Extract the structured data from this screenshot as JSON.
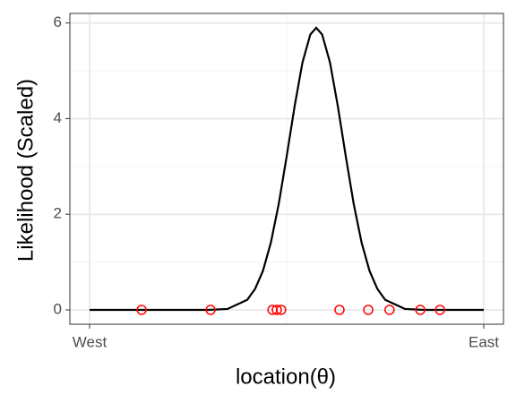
{
  "chart_data": {
    "type": "line",
    "x_label": "location(θ)",
    "y_label": "Likelihood (Scaled)",
    "xlim": [
      -0.05,
      1.05
    ],
    "ylim": [
      -0.3,
      6.2
    ],
    "xticks": [
      {
        "value": 0,
        "label": "West"
      },
      {
        "value": 1,
        "label": "East"
      }
    ],
    "yticks": [
      0,
      2,
      4,
      6
    ],
    "x_minor_ticks": [
      0.5
    ],
    "y_minor_ticks": [
      1,
      3,
      5
    ],
    "grid": true,
    "series": [
      {
        "type": "line",
        "color": "#000000",
        "x": [
          0,
          0.1,
          0.2,
          0.3,
          0.35,
          0.4,
          0.42,
          0.44,
          0.46,
          0.48,
          0.5,
          0.52,
          0.54,
          0.56,
          0.575,
          0.59,
          0.61,
          0.63,
          0.65,
          0.67,
          0.69,
          0.71,
          0.73,
          0.75,
          0.8,
          0.85,
          0.9,
          1
        ],
        "values": [
          0,
          0,
          0,
          0,
          0.02,
          0.21,
          0.44,
          0.82,
          1.41,
          2.22,
          3.21,
          4.25,
          5.17,
          5.76,
          5.9,
          5.76,
          5.17,
          4.25,
          3.21,
          2.22,
          1.41,
          0.82,
          0.44,
          0.21,
          0.02,
          0,
          0,
          0
        ]
      },
      {
        "type": "scatter",
        "color": "#ff0000",
        "x": [
          0.132,
          0.307,
          0.464,
          0.475,
          0.486,
          0.634,
          0.707,
          0.761,
          0.839,
          0.889
        ],
        "values": [
          0,
          0,
          0,
          0,
          0,
          0,
          0,
          0,
          0,
          0
        ]
      }
    ]
  }
}
